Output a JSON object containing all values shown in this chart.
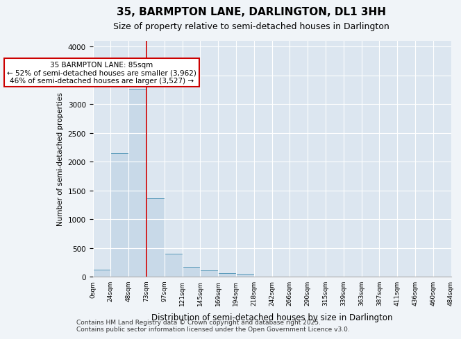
{
  "title_line1": "35, BARMPTON LANE, DARLINGTON, DL1 3HH",
  "title_line2": "Size of property relative to semi-detached houses in Darlington",
  "xlabel": "Distribution of semi-detached houses by size in Darlington",
  "ylabel": "Number of semi-detached properties",
  "footnote": "Contains HM Land Registry data © Crown copyright and database right 2025.\nContains public sector information licensed under the Open Government Licence v3.0.",
  "bin_labels": [
    "0sqm",
    "24sqm",
    "48sqm",
    "73sqm",
    "97sqm",
    "121sqm",
    "145sqm",
    "169sqm",
    "194sqm",
    "218sqm",
    "242sqm",
    "266sqm",
    "290sqm",
    "315sqm",
    "339sqm",
    "363sqm",
    "387sqm",
    "411sqm",
    "436sqm",
    "460sqm",
    "484sqm"
  ],
  "bar_values": [
    120,
    2150,
    3250,
    1360,
    400,
    165,
    105,
    60,
    50,
    0,
    0,
    0,
    0,
    0,
    0,
    0,
    0,
    0,
    0,
    0
  ],
  "bar_color": "#c8d9e8",
  "bar_edge_color": "#5a9aba",
  "vline_x": 3,
  "vline_color": "#cc0000",
  "annotation_title": "35 BARMPTON LANE: 85sqm",
  "annotation_line1": "← 52% of semi-detached houses are smaller (3,962)",
  "annotation_line2": "46% of semi-detached houses are larger (3,527) →",
  "annotation_box_color": "#cc0000",
  "ylim": [
    0,
    4100
  ],
  "yticks": [
    0,
    500,
    1000,
    1500,
    2000,
    2500,
    3000,
    3500,
    4000
  ],
  "bg_color": "#e8eef5",
  "plot_bg_color": "#dce6f0"
}
